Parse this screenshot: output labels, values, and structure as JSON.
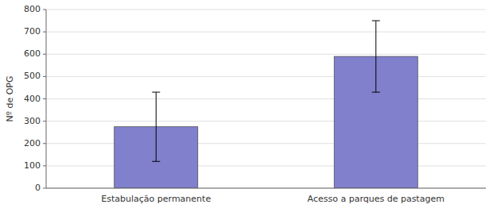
{
  "chart_data": {
    "type": "bar",
    "categories": [
      "Estabulação permanente",
      "Acesso a parques de pastagem"
    ],
    "values": [
      275,
      590
    ],
    "errors": [
      155,
      160
    ],
    "color": "#8080cc",
    "ylabel": "Nº de OPG",
    "ylim": [
      0,
      800
    ],
    "yticks": [
      0,
      100,
      200,
      300,
      400,
      500,
      600,
      700,
      800
    ],
    "grid": true
  }
}
